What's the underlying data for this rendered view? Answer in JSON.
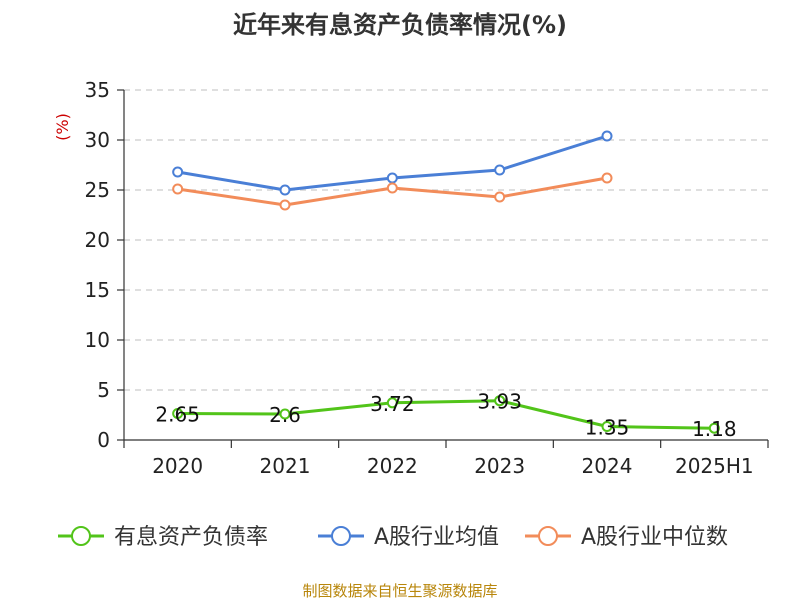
{
  "chart_data": {
    "type": "line",
    "title": "近年来有息资产负债率情况(%)",
    "ylabel": "(%)",
    "xlabel": "",
    "categories": [
      "2020",
      "2021",
      "2022",
      "2023",
      "2024",
      "2025H1"
    ],
    "ylim": [
      0,
      35
    ],
    "yticks": [
      0,
      5,
      10,
      15,
      20,
      25,
      30,
      35
    ],
    "grid": true,
    "legend_position": "bottom",
    "series": [
      {
        "name": "有息资产负债率",
        "color": "#52c41a",
        "values": [
          2.65,
          2.6,
          3.72,
          3.93,
          1.35,
          1.18
        ],
        "labels": [
          "2.65",
          "2.6",
          "3.72",
          "3.93",
          "1.35",
          "1.18"
        ],
        "show_labels": true
      },
      {
        "name": "A股行业均值",
        "color": "#4a7fd6",
        "values": [
          26.8,
          25.0,
          26.2,
          27.0,
          30.4,
          null
        ],
        "show_labels": false
      },
      {
        "name": "A股行业中位数",
        "color": "#f28c5a",
        "values": [
          25.1,
          23.5,
          25.2,
          24.3,
          26.2,
          null
        ],
        "show_labels": false
      }
    ],
    "source": "制图数据来自恒生聚源数据库"
  }
}
